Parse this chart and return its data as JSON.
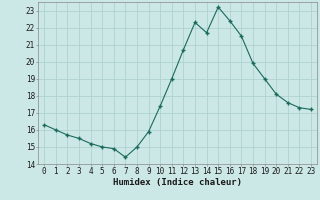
{
  "x": [
    0,
    1,
    2,
    3,
    4,
    5,
    6,
    7,
    8,
    9,
    10,
    11,
    12,
    13,
    14,
    15,
    16,
    17,
    18,
    19,
    20,
    21,
    22,
    23
  ],
  "y": [
    16.3,
    16.0,
    15.7,
    15.5,
    15.2,
    15.0,
    14.9,
    14.4,
    15.0,
    15.9,
    17.4,
    19.0,
    20.7,
    22.3,
    21.7,
    23.2,
    22.4,
    21.5,
    19.9,
    19.0,
    18.1,
    17.6,
    17.3,
    17.2
  ],
  "line_color": "#1a6b5a",
  "marker_color": "#1a6b5a",
  "bg_color": "#cce8e6",
  "grid_color": "#aacfcc",
  "xlabel": "Humidex (Indice chaleur)",
  "xlim": [
    -0.5,
    23.5
  ],
  "ylim": [
    14,
    23.5
  ],
  "yticks": [
    14,
    15,
    16,
    17,
    18,
    19,
    20,
    21,
    22,
    23
  ],
  "xticks": [
    0,
    1,
    2,
    3,
    4,
    5,
    6,
    7,
    8,
    9,
    10,
    11,
    12,
    13,
    14,
    15,
    16,
    17,
    18,
    19,
    20,
    21,
    22,
    23
  ],
  "label_fontsize": 6.5,
  "tick_fontsize": 5.5
}
